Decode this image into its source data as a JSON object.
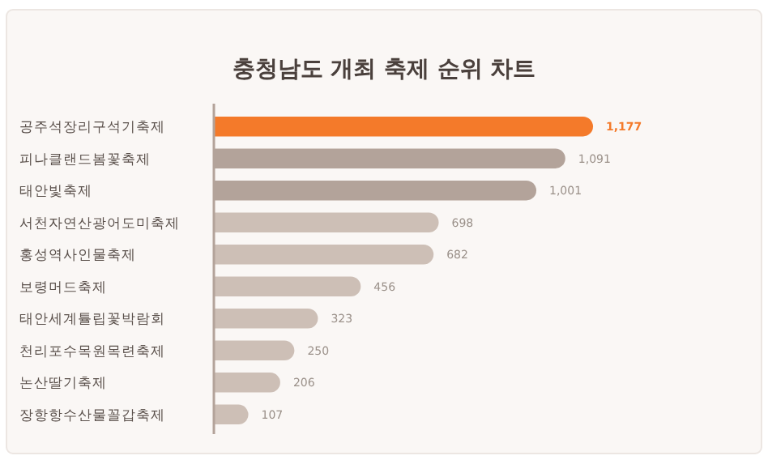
{
  "chart_data": {
    "type": "bar",
    "orientation": "horizontal",
    "title": "충청남도 개최 축제 순위 차트",
    "categories": [
      "공주석장리구석기축제",
      "피나클랜드봄꽃축제",
      "태안빛축제",
      "서천자연산광어도미축제",
      "홍성역사인물축제",
      "보령머드축제",
      "태안세계튤립꽃박람회",
      "천리포수목원목련축제",
      "논산딸기축제",
      "장항항수산물꼴갑축제"
    ],
    "values": [
      1177,
      1091,
      1001,
      698,
      682,
      456,
      323,
      250,
      206,
      107
    ],
    "colors": [
      "#f47a2a",
      "#b3a39a",
      "#b3a39a",
      "#cdbfb6",
      "#cdbfb6",
      "#cdbfb6",
      "#cdbfb6",
      "#cdbfb6",
      "#cdbfb6",
      "#cdbfb6"
    ],
    "value_labels": [
      "1,177",
      "1,091",
      "1,001",
      "698",
      "682",
      "456",
      "323",
      "250",
      "206",
      "107"
    ]
  }
}
